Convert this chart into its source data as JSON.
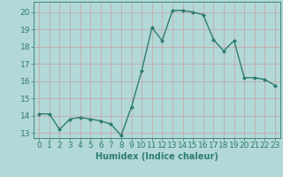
{
  "x": [
    0,
    1,
    2,
    3,
    4,
    5,
    6,
    7,
    8,
    9,
    10,
    11,
    12,
    13,
    14,
    15,
    16,
    17,
    18,
    19,
    20,
    21,
    22,
    23
  ],
  "y": [
    14.1,
    14.1,
    13.2,
    13.8,
    13.9,
    13.8,
    13.7,
    13.5,
    12.85,
    14.5,
    16.6,
    19.1,
    18.35,
    20.1,
    20.1,
    20.0,
    19.85,
    18.4,
    17.75,
    18.35,
    16.2,
    16.2,
    16.1,
    15.75
  ],
  "line_color": "#2e7d6e",
  "marker": "D",
  "marker_size": 2.0,
  "background_color": "#b2d8d8",
  "grid_color": "#c8a0a0",
  "xlabel": "Humidex (Indice chaleur)",
  "xlabel_fontsize": 7,
  "tick_fontsize": 6.5,
  "ylim": [
    12.7,
    20.6
  ],
  "xlim": [
    -0.5,
    23.5
  ],
  "yticks": [
    13,
    14,
    15,
    16,
    17,
    18,
    19,
    20
  ],
  "xticks": [
    0,
    1,
    2,
    3,
    4,
    5,
    6,
    7,
    8,
    9,
    10,
    11,
    12,
    13,
    14,
    15,
    16,
    17,
    18,
    19,
    20,
    21,
    22,
    23
  ],
  "line_width": 1.0,
  "spine_color": "#2e7d6e",
  "text_color": "#2e7d6e"
}
